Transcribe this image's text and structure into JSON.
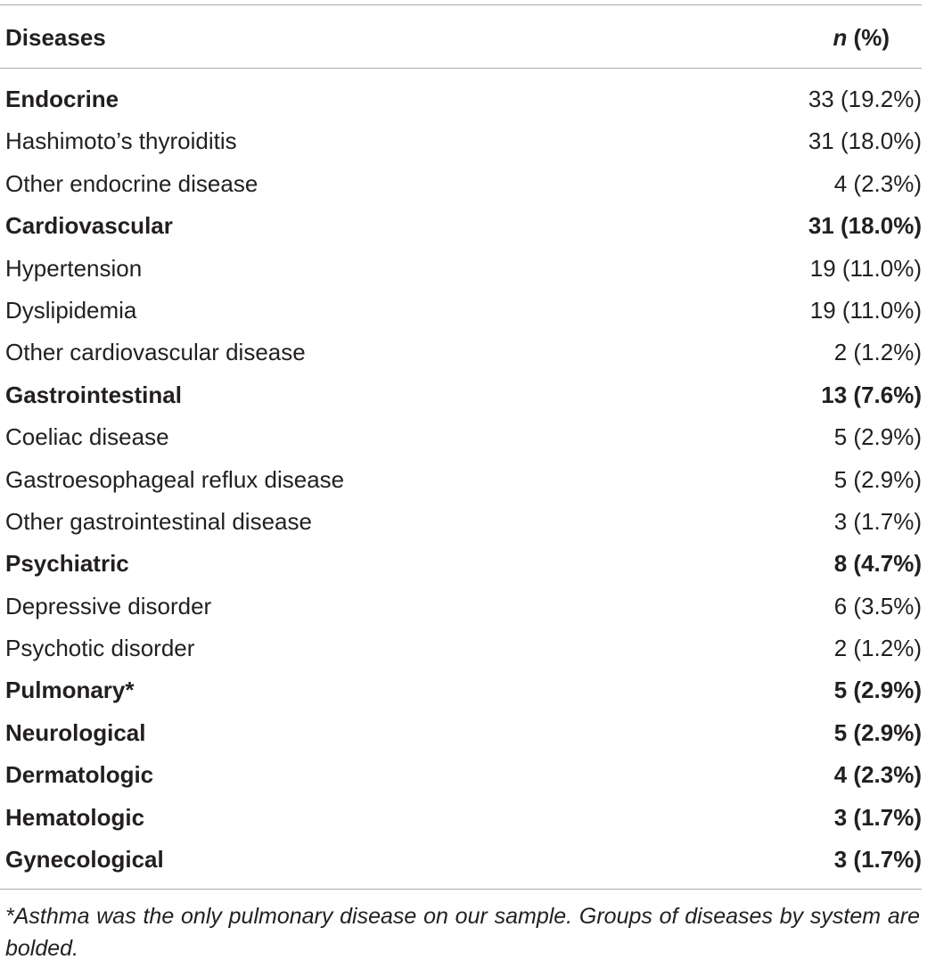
{
  "table": {
    "header": {
      "col1": "Diseases",
      "col2_italic": "n",
      "col2_rest": " (%)"
    },
    "rows": [
      {
        "label": "Endocrine",
        "value": "33 (19.2%)",
        "bold": true,
        "value_bold": false
      },
      {
        "label": "Hashimoto’s thyroiditis",
        "value": "31 (18.0%)",
        "bold": false
      },
      {
        "label": "Other endocrine disease",
        "value": "4 (2.3%)",
        "bold": false
      },
      {
        "label": "Cardiovascular",
        "value": "31 (18.0%)",
        "bold": true
      },
      {
        "label": "Hypertension",
        "value": "19 (11.0%)",
        "bold": false
      },
      {
        "label": "Dyslipidemia",
        "value": "19 (11.0%)",
        "bold": false
      },
      {
        "label": "Other cardiovascular disease",
        "value": "2 (1.2%)",
        "bold": false
      },
      {
        "label": "Gastrointestinal",
        "value": "13 (7.6%)",
        "bold": true
      },
      {
        "label": "Coeliac disease",
        "value": "5 (2.9%)",
        "bold": false
      },
      {
        "label": "Gastroesophageal reflux disease",
        "value": "5 (2.9%)",
        "bold": false
      },
      {
        "label": "Other gastrointestinal disease",
        "value": "3 (1.7%)",
        "bold": false
      },
      {
        "label": "Psychiatric",
        "value": "8 (4.7%)",
        "bold": true
      },
      {
        "label": "Depressive disorder",
        "value": "6 (3.5%)",
        "bold": false
      },
      {
        "label": "Psychotic disorder",
        "value": "2 (1.2%)",
        "bold": false
      },
      {
        "label": "Pulmonary*",
        "value": "5 (2.9%)",
        "bold": true
      },
      {
        "label": "Neurological",
        "value": "5 (2.9%)",
        "bold": true
      },
      {
        "label": "Dermatologic",
        "value": "4 (2.3%)",
        "bold": true
      },
      {
        "label": "Hematologic",
        "value": "3 (1.7%)",
        "bold": true
      },
      {
        "label": "Gynecological",
        "value": "3 (1.7%)",
        "bold": true
      }
    ]
  },
  "footnote": "*Asthma was the only pulmonary disease on our sample. Groups of diseases by system are bolded."
}
